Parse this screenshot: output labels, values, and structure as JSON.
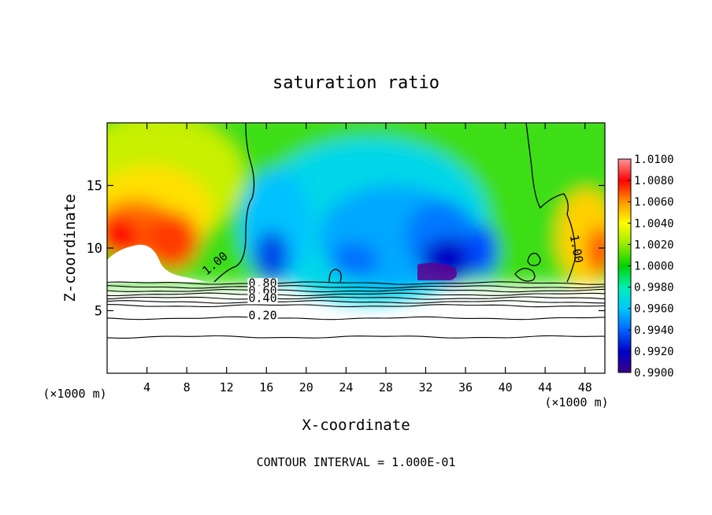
{
  "chart_data": {
    "type": "heatmap",
    "title": "saturation ratio",
    "xlabel": "X-coordinate",
    "ylabel": "Z-coordinate",
    "x_unit_label": "(×1000 m)",
    "x_unit_label_right": "(×1000 m)",
    "xlim": [
      0,
      50
    ],
    "ylim": [
      0,
      20
    ],
    "xticks": [
      {
        "value": 4,
        "label": "4"
      },
      {
        "value": 8,
        "label": "8"
      },
      {
        "value": 12,
        "label": "12"
      },
      {
        "value": 16,
        "label": "16"
      },
      {
        "value": 20,
        "label": "20"
      },
      {
        "value": 24,
        "label": "24"
      },
      {
        "value": 28,
        "label": "28"
      },
      {
        "value": 32,
        "label": "32"
      },
      {
        "value": 36,
        "label": "36"
      },
      {
        "value": 40,
        "label": "40"
      },
      {
        "value": 44,
        "label": "44"
      },
      {
        "value": 48,
        "label": "48"
      }
    ],
    "yticks": [
      {
        "value": 5,
        "label": "5"
      },
      {
        "value": 10,
        "label": "10"
      },
      {
        "value": 15,
        "label": "15"
      }
    ],
    "colorbar": {
      "levels": [
        "0.9900",
        "0.9920",
        "0.9940",
        "0.9960",
        "0.9980",
        "1.0000",
        "1.0020",
        "1.0040",
        "1.0060",
        "1.0080",
        "1.0100"
      ],
      "colors": [
        "#3a0086",
        "#0000c8",
        "#0064ff",
        "#00c8ff",
        "#00f0b4",
        "#00d200",
        "#96eb00",
        "#ffff00",
        "#ff9600",
        "#ff0000",
        "#ff9696"
      ]
    },
    "contour_labels": [
      {
        "text": "1.00",
        "x": 10.0,
        "z": 7.8
      },
      {
        "text": "1.00",
        "x": 46.5,
        "z": 11.0
      },
      {
        "text": "0.80",
        "x": 14.2,
        "z": 6.9
      },
      {
        "text": "0.60",
        "x": 14.2,
        "z": 6.3
      },
      {
        "text": "0.40",
        "x": 14.2,
        "z": 5.7
      },
      {
        "text": "0.20",
        "x": 14.2,
        "z": 4.3
      }
    ],
    "lower_contours_z": [
      7.2,
      6.9,
      6.6,
      6.3,
      6.0,
      5.7,
      5.4,
      4.4,
      2.9
    ],
    "footer": "CONTOUR INTERVAL = 1.000E-01",
    "grid": false
  }
}
